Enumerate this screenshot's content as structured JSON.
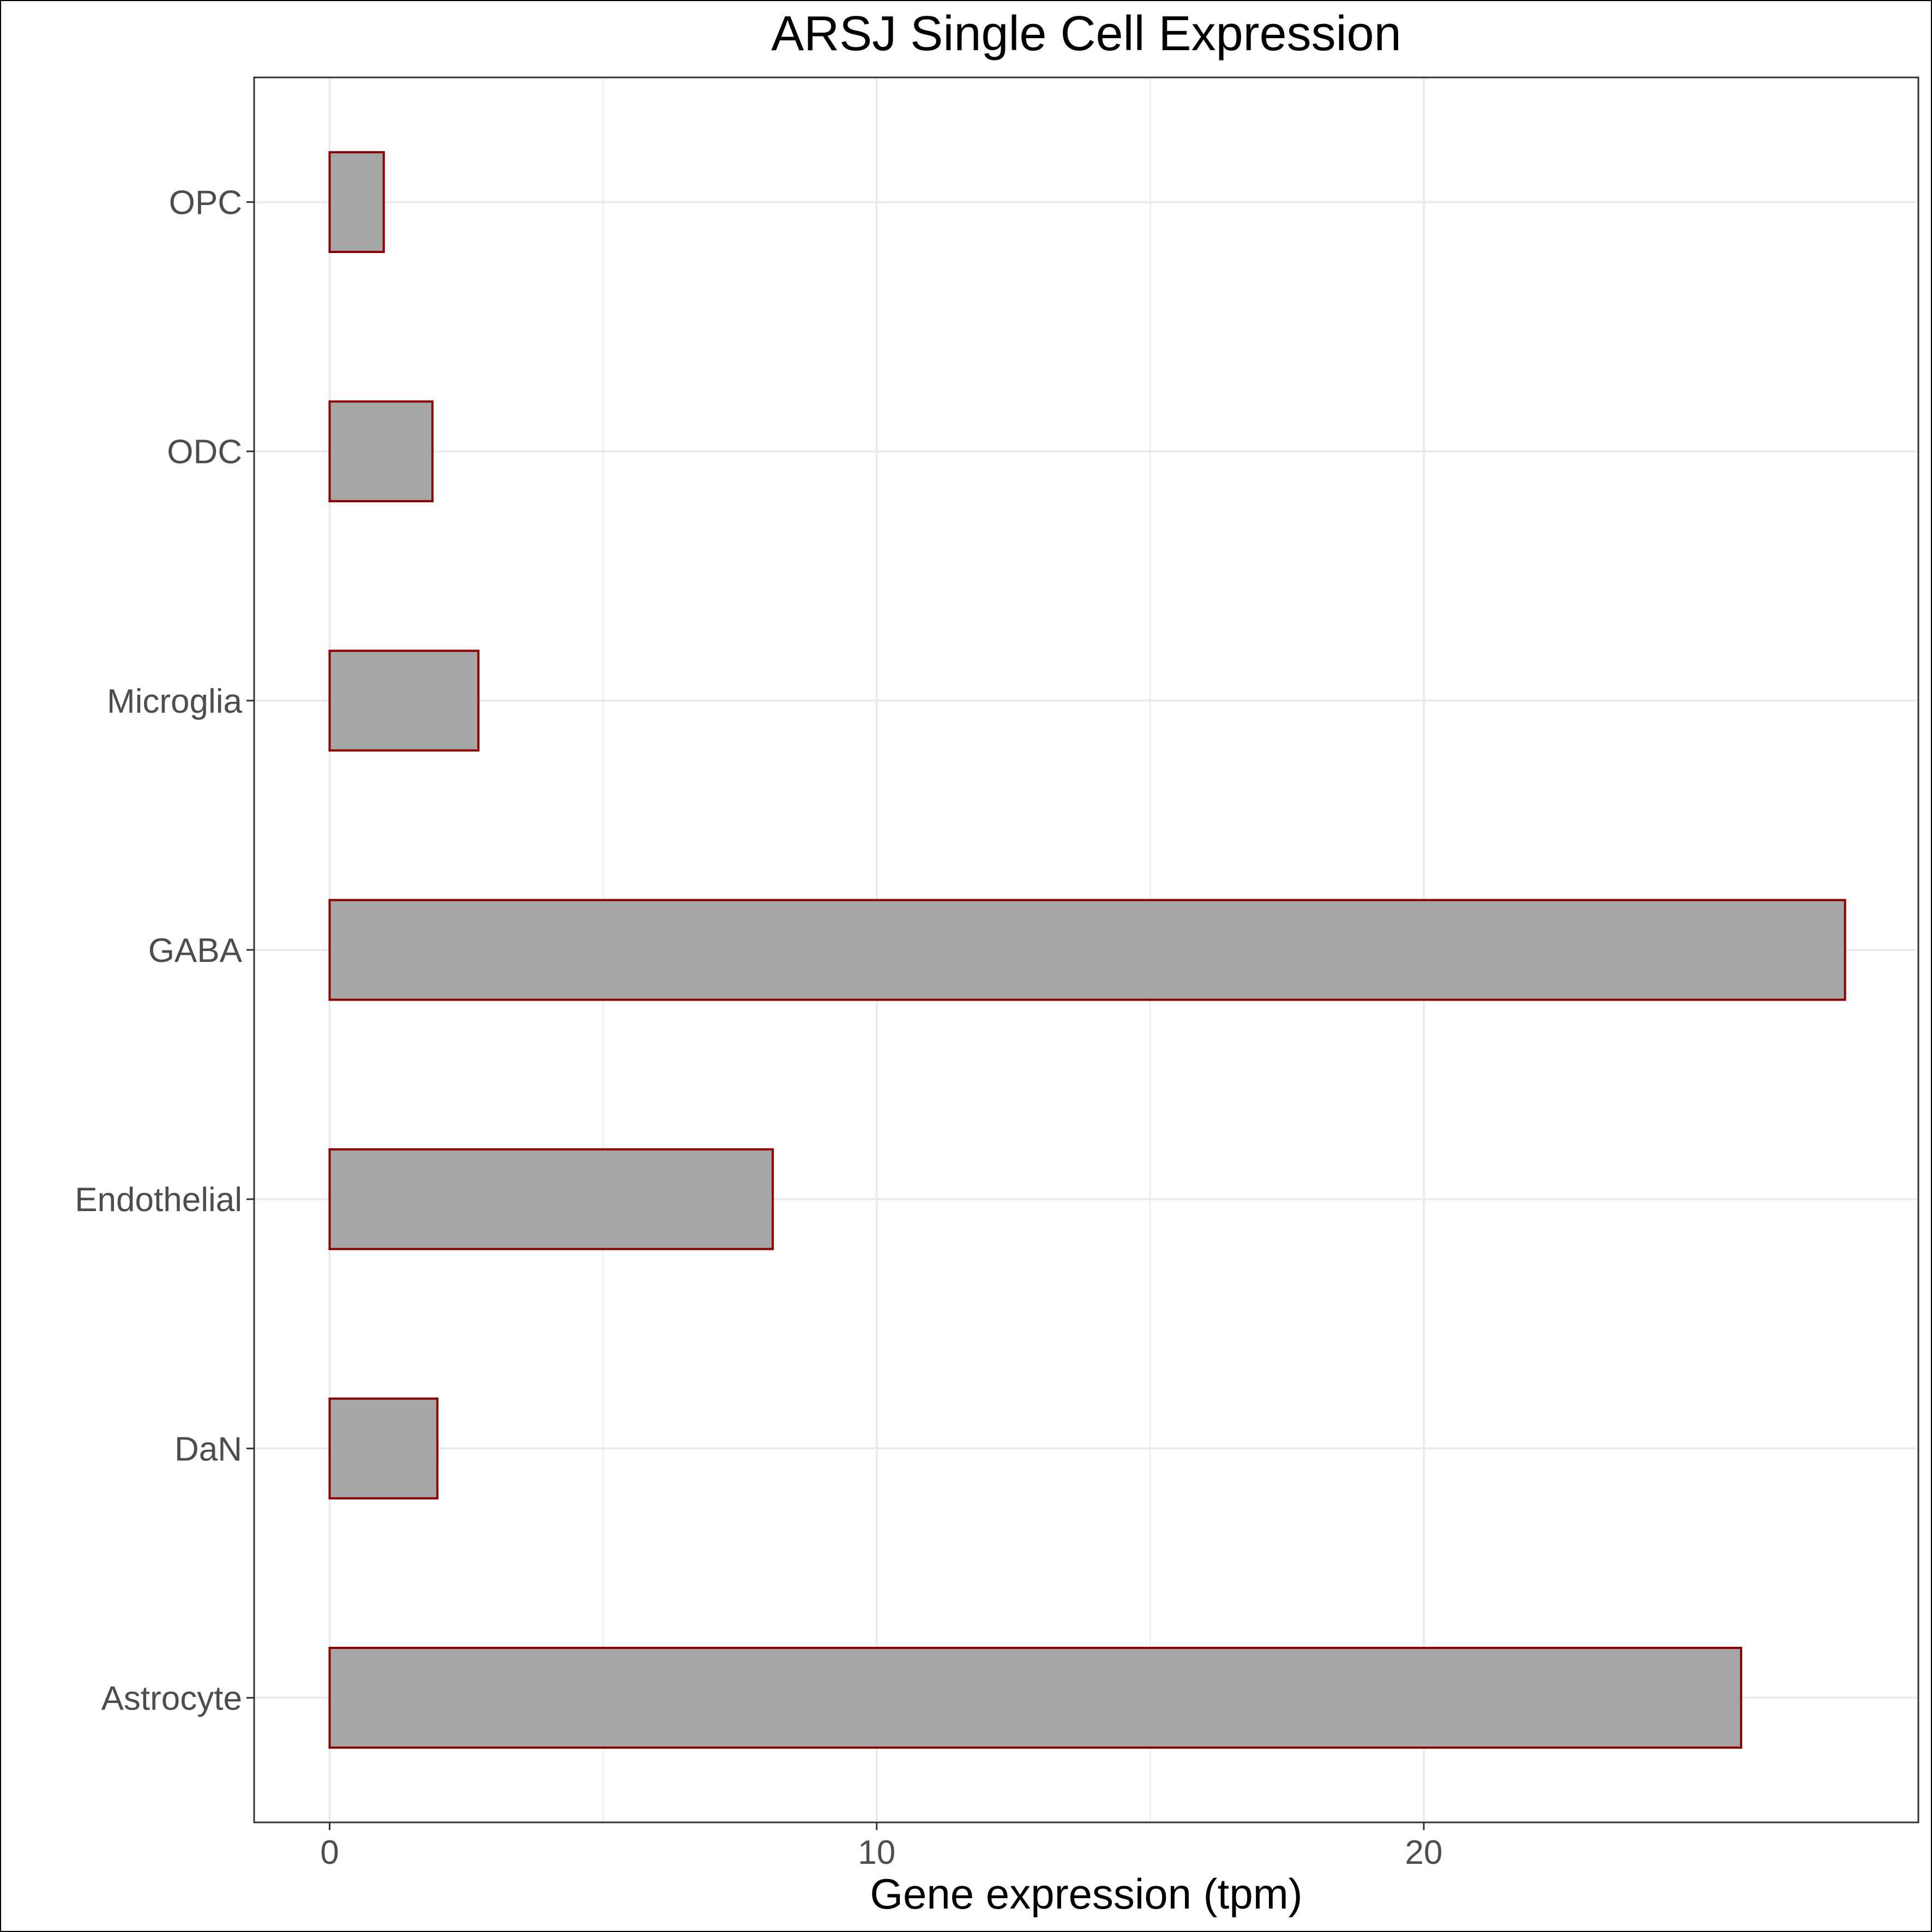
{
  "chart_data": {
    "type": "bar",
    "orientation": "horizontal",
    "title": "ARSJ Single Cell Expression",
    "xlabel": "Gene expression (tpm)",
    "ylabel": "",
    "categories": [
      "Astrocyte",
      "DaN",
      "Endothelial",
      "GABA",
      "Microglia",
      "ODC",
      "OPC"
    ],
    "values": [
      25.8,
      1.97,
      8.1,
      27.7,
      2.72,
      1.88,
      0.99
    ],
    "xlim": [
      -1.38,
      29.04
    ],
    "xticks": [
      0,
      10,
      20
    ],
    "grid": true,
    "legend": "none",
    "colors": {
      "bar_fill": "#a6a6a6",
      "bar_stroke": "#8b0000",
      "grid": "#ebebeb",
      "panel_border": "#333333"
    }
  }
}
